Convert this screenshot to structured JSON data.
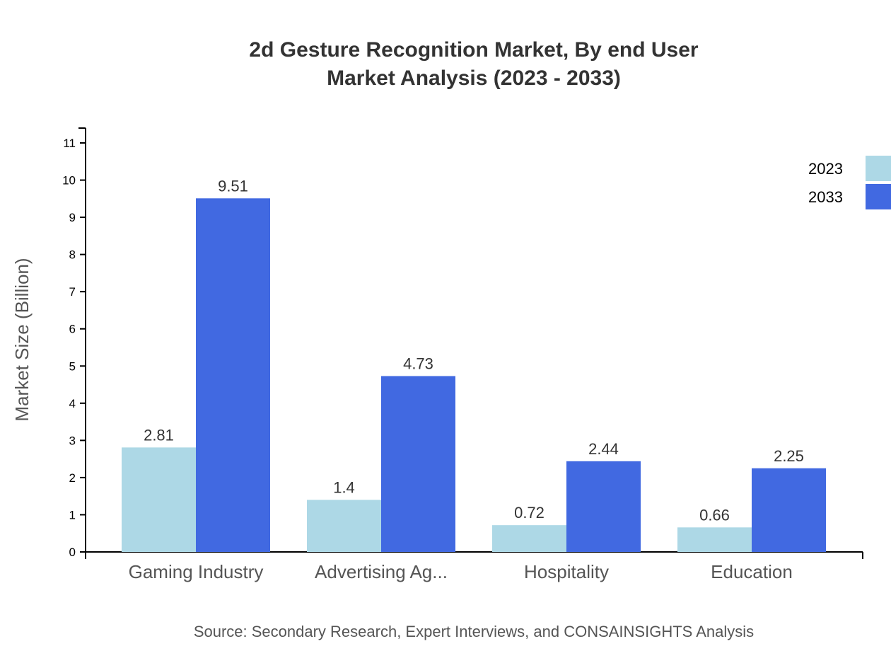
{
  "chart_data": {
    "type": "bar",
    "title": "2d Gesture Recognition Market, By end User",
    "subtitle": "Market Analysis (2023 - 2033)",
    "ylabel": "Market Size (Billion)",
    "xlabel": "",
    "ylim": [
      0,
      11
    ],
    "yticks": [
      0,
      1,
      2,
      3,
      4,
      5,
      6,
      7,
      8,
      9,
      10,
      11
    ],
    "categories": [
      "Gaming Industry",
      "Advertising Ag...",
      "Hospitality",
      "Education"
    ],
    "series": [
      {
        "name": "2023",
        "color": "#add8e6",
        "values": [
          2.81,
          1.4,
          0.72,
          0.66
        ]
      },
      {
        "name": "2033",
        "color": "#4169e1",
        "values": [
          9.51,
          4.73,
          2.44,
          2.25
        ]
      }
    ],
    "legend": "top-right",
    "grid": false,
    "source": "Source: Secondary Research, Expert Interviews, and CONSAINSIGHTS Analysis"
  }
}
